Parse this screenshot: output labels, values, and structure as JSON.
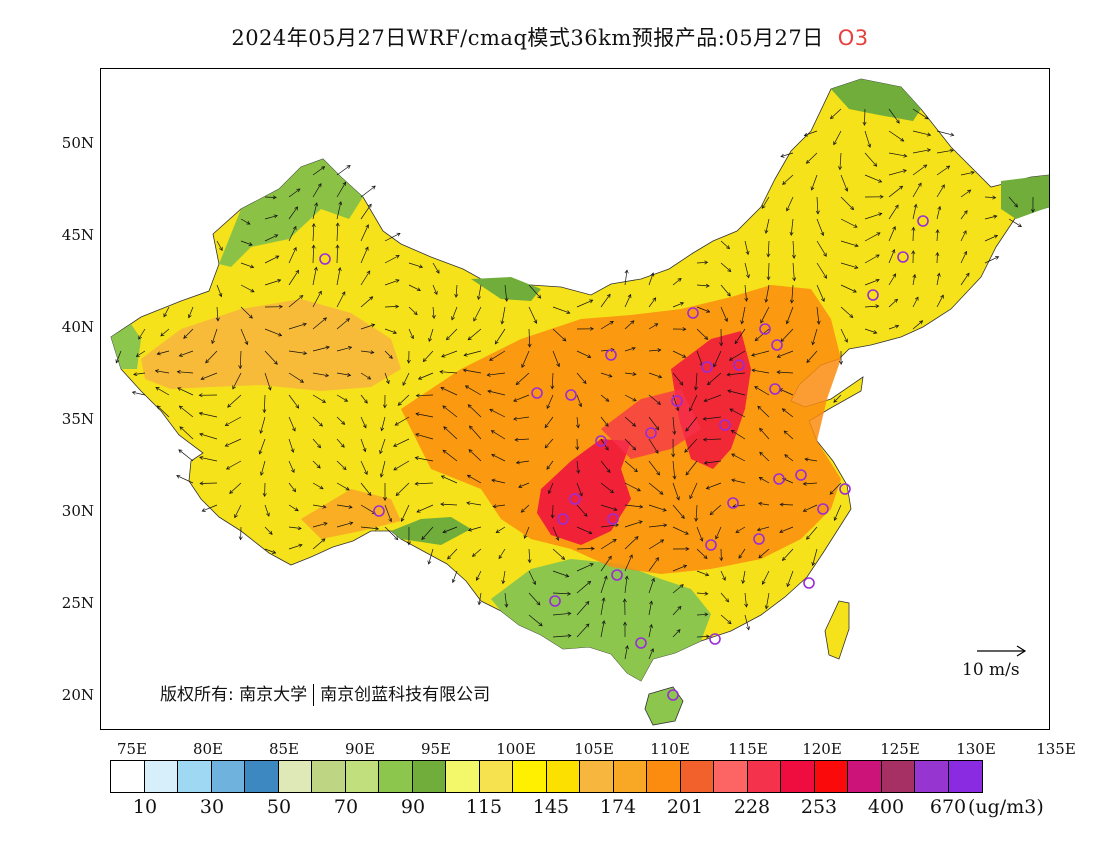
{
  "title": {
    "main": "2024年05月27日WRF/cmaq模式36km预报产品:05月27日",
    "species": "O3"
  },
  "map": {
    "lat_labels": [
      "50N",
      "45N",
      "40N",
      "35N",
      "30N",
      "25N",
      "20N"
    ],
    "lon_labels": [
      "75E",
      "80E",
      "85E",
      "90E",
      "95E",
      "100E",
      "105E",
      "110E",
      "115E",
      "120E",
      "125E",
      "130E",
      "135E"
    ],
    "copyright_prefix": "版权所有:",
    "copyright_org1": "南京大学",
    "copyright_org2": "南京创蓝科技有限公司",
    "wind_reference": "10 m/s",
    "land_fill": "#f5e21a",
    "high_fill": "#f05a3c",
    "peak_fill": "#ee1c52",
    "low_fill": "#7fbf4a",
    "ocean_fill": "#ffffff",
    "station_marker_color": "#9a2cd8"
  },
  "colorbar": {
    "colors": [
      "#ffffff",
      "#d7effa",
      "#9ed8f3",
      "#6fb2de",
      "#3d88c0",
      "#dfe8b7",
      "#bed683",
      "#c2df7d",
      "#8cc64c",
      "#70ad3b",
      "#f3f76a",
      "#f5e24e",
      "#fff000",
      "#fce000",
      "#f7b63d",
      "#f9a826",
      "#fb8c10",
      "#f2612b",
      "#fc6564",
      "#f5324c",
      "#ef0d40",
      "#fa0a0a",
      "#cc137a",
      "#a62f64",
      "#9735d1",
      "#8a2be2"
    ],
    "labels": [
      "10",
      "30",
      "50",
      "70",
      "90",
      "115",
      "145",
      "174",
      "201",
      "228",
      "253",
      "400",
      "670"
    ],
    "unit": "(ug/m3)"
  }
}
